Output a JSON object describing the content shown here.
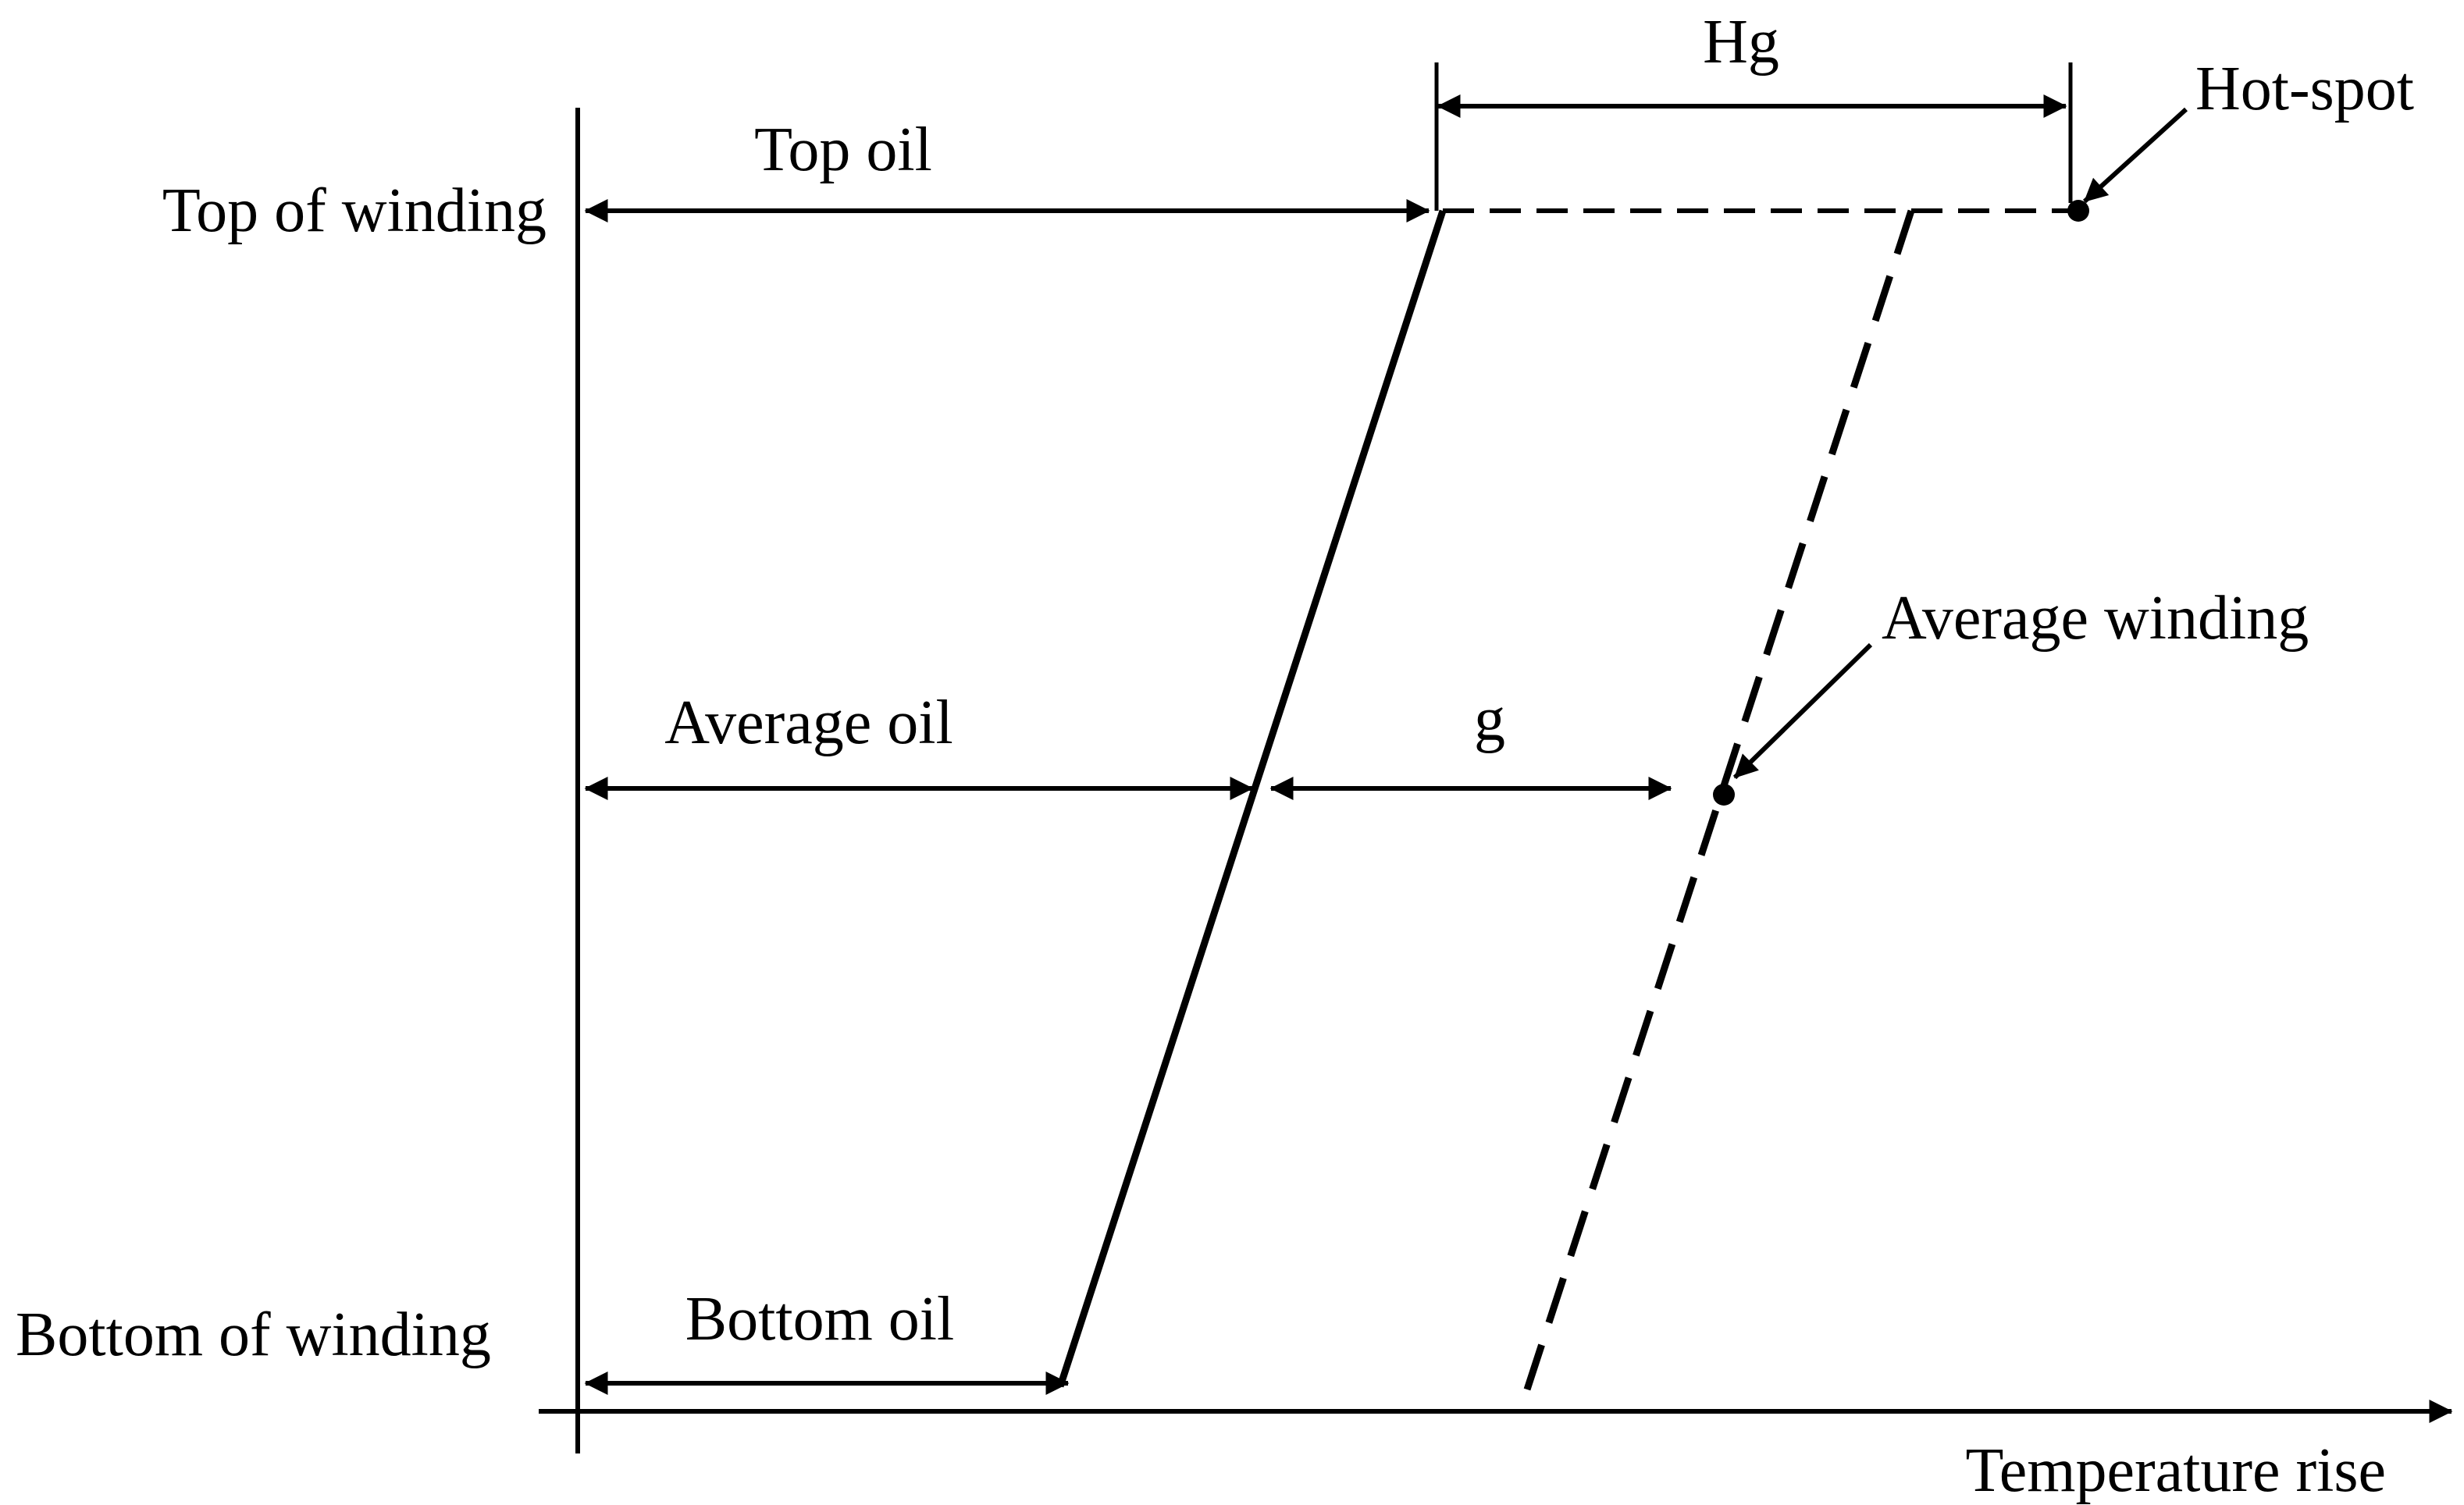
{
  "diagram": {
    "labels": {
      "top_of_winding": "Top of winding",
      "bottom_of_winding": "Bottom of winding",
      "top_oil": "Top oil",
      "average_oil": "Average oil",
      "bottom_oil": "Bottom oil",
      "hg": "Hg",
      "g": "g",
      "hot_spot": "Hot-spot",
      "average_winding": "Average winding",
      "temperature_rise": "Temperature rise"
    },
    "colors": {
      "ink": "#000000",
      "background": "#ffffff"
    }
  }
}
